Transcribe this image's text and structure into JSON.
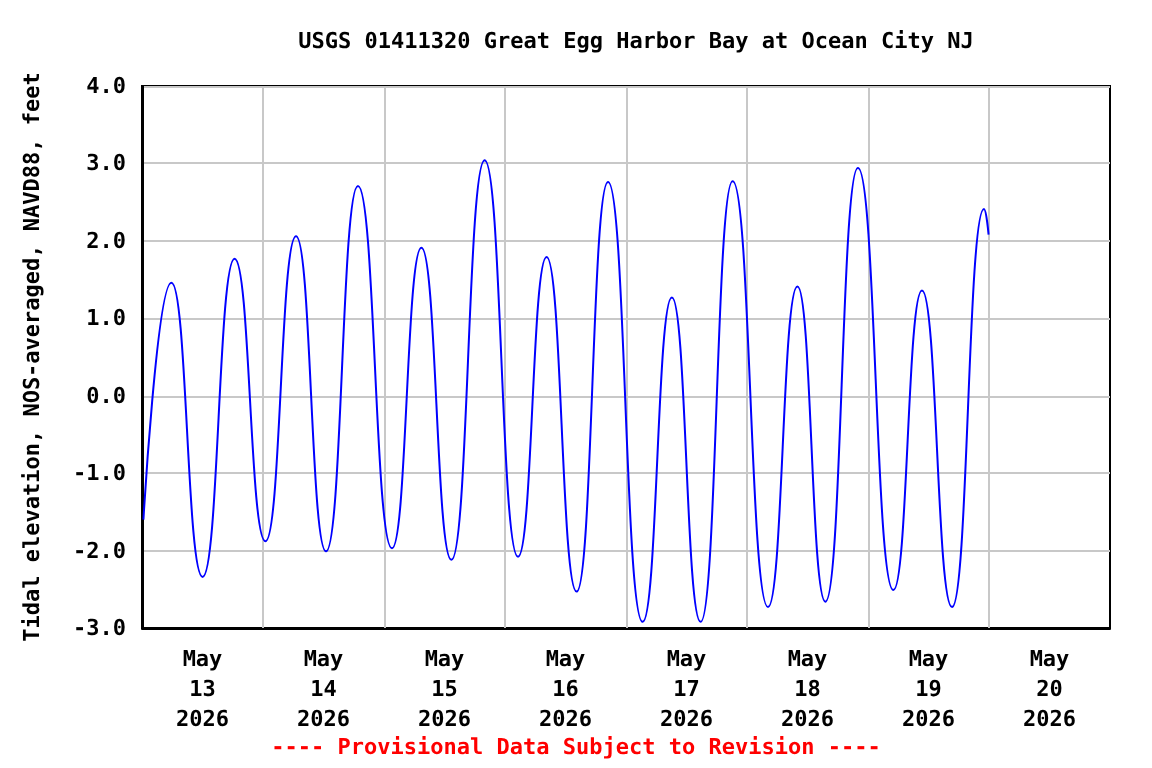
{
  "chart_data": {
    "type": "line",
    "title": "USGS 01411320 Great Egg Harbor Bay at Ocean City NJ",
    "ylabel": "Tidal elevation, NOS-averaged, NAVD88, feet",
    "annotations": [
      "---- Provisional Data Subject to Revision ----"
    ],
    "x": [
      "2026-05-13T00:17",
      "2026-05-13T05:50",
      "2026-05-13T12:01",
      "2026-05-13T18:22",
      "2026-05-14T00:29",
      "2026-05-14T06:33",
      "2026-05-14T12:30",
      "2026-05-14T18:50",
      "2026-05-15T01:35",
      "2026-05-15T07:25",
      "2026-05-15T13:22",
      "2026-05-15T19:58",
      "2026-05-16T02:35",
      "2026-05-16T08:15",
      "2026-05-16T14:12",
      "2026-05-16T20:26",
      "2026-05-17T03:18",
      "2026-05-17T09:06",
      "2026-05-17T14:48",
      "2026-05-17T21:09",
      "2026-05-18T04:10",
      "2026-05-18T10:00",
      "2026-05-18T15:33",
      "2026-05-18T22:00",
      "2026-05-19T05:02",
      "2026-05-19T10:42",
      "2026-05-19T16:40",
      "2026-05-19T23:00",
      "2026-05-19T23:55"
    ],
    "series": [
      {
        "color": "#0000ff",
        "values": [
          -1.6,
          1.46,
          -2.34,
          1.77,
          -1.88,
          2.06,
          -2.01,
          2.71,
          -1.97,
          1.91,
          -2.12,
          3.04,
          -2.08,
          1.79,
          -2.53,
          2.76,
          -2.92,
          1.27,
          -2.92,
          2.77,
          -2.73,
          1.41,
          -2.66,
          2.94,
          -2.51,
          1.36,
          -2.73,
          2.41,
          2.08
        ]
      }
    ],
    "xlim": [
      "2026-05-13T00:00",
      "2026-05-21T00:00"
    ],
    "xticks": [
      {
        "value": "2026-05-13T12:00",
        "label": "May\n13\n2026"
      },
      {
        "value": "2026-05-14T12:00",
        "label": "May\n14\n2026"
      },
      {
        "value": "2026-05-15T12:00",
        "label": "May\n15\n2026"
      },
      {
        "value": "2026-05-16T12:00",
        "label": "May\n16\n2026"
      },
      {
        "value": "2026-05-17T12:00",
        "label": "May\n17\n2026"
      },
      {
        "value": "2026-05-18T12:00",
        "label": "May\n18\n2026"
      },
      {
        "value": "2026-05-19T12:00",
        "label": "May\n19\n2026"
      },
      {
        "value": "2026-05-20T12:00",
        "label": "May\n20\n2026"
      },
      {
        "value": "2026-05-14T00:00",
        "label": null
      },
      {
        "value": "2026-05-15T00:00",
        "label": null
      },
      {
        "value": "2026-05-16T00:00",
        "label": null
      },
      {
        "value": "2026-05-17T00:00",
        "label": null
      },
      {
        "value": "2026-05-18T00:00",
        "label": null
      },
      {
        "value": "2026-05-19T00:00",
        "label": null
      },
      {
        "value": "2026-05-20T00:00",
        "label": null
      }
    ],
    "ylim": [
      -3,
      4
    ],
    "yticks": [
      {
        "value": -3,
        "label": "-3.0"
      },
      {
        "value": -2,
        "label": "-2.0"
      },
      {
        "value": -1,
        "label": "-1.0"
      },
      {
        "value": 0,
        "label": "0.0"
      },
      {
        "value": 1,
        "label": "1.0"
      },
      {
        "value": 2,
        "label": "2.0"
      },
      {
        "value": 3,
        "label": "3.0"
      },
      {
        "value": 4,
        "label": "4.0"
      }
    ],
    "grid": true,
    "marker": "none",
    "line_style": "solid"
  }
}
